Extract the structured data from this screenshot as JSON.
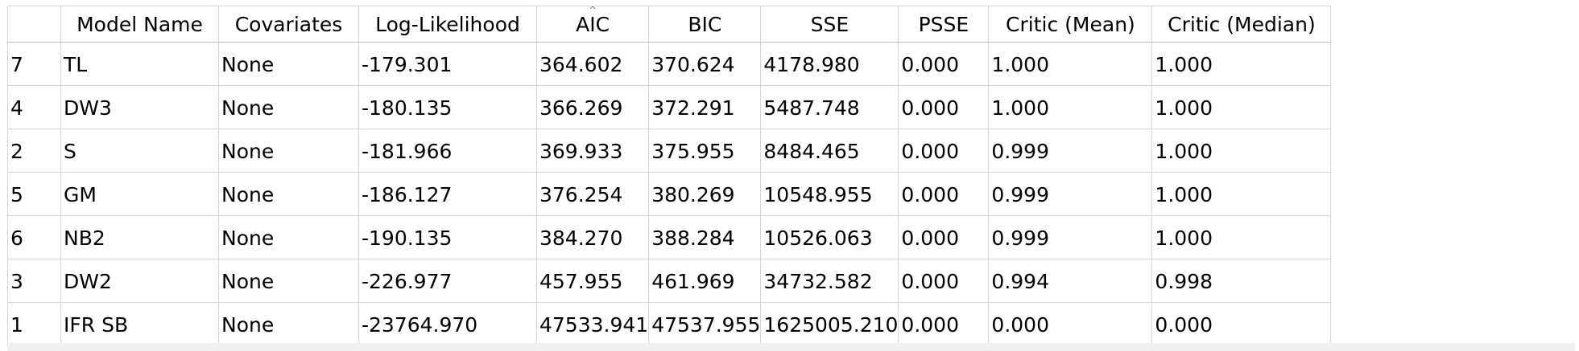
{
  "table": {
    "columns": [
      {
        "key": "row",
        "label": ""
      },
      {
        "key": "model_name",
        "label": "Model Name"
      },
      {
        "key": "covariates",
        "label": "Covariates"
      },
      {
        "key": "log_likelihood",
        "label": "Log-Likelihood"
      },
      {
        "key": "aic",
        "label": "AIC",
        "sorted": true
      },
      {
        "key": "bic",
        "label": "BIC"
      },
      {
        "key": "sse",
        "label": "SSE"
      },
      {
        "key": "psse",
        "label": "PSSE"
      },
      {
        "key": "critic_mean",
        "label": "Critic (Mean)"
      },
      {
        "key": "critic_median",
        "label": "Critic (Median)"
      }
    ],
    "sort_indicator": "^",
    "rows": [
      [
        "7",
        "TL",
        "None",
        "-179.301",
        "364.602",
        "370.624",
        "4178.980",
        "0.000",
        "1.000",
        "1.000"
      ],
      [
        "4",
        "DW3",
        "None",
        "-180.135",
        "366.269",
        "372.291",
        "5487.748",
        "0.000",
        "1.000",
        "1.000"
      ],
      [
        "2",
        "S",
        "None",
        "-181.966",
        "369.933",
        "375.955",
        "8484.465",
        "0.000",
        "0.999",
        "1.000"
      ],
      [
        "5",
        "GM",
        "None",
        "-186.127",
        "376.254",
        "380.269",
        "10548.955",
        "0.000",
        "0.999",
        "1.000"
      ],
      [
        "6",
        "NB2",
        "None",
        "-190.135",
        "384.270",
        "388.284",
        "10526.063",
        "0.000",
        "0.999",
        "1.000"
      ],
      [
        "3",
        "DW2",
        "None",
        "-226.977",
        "457.955",
        "461.969",
        "34732.582",
        "0.000",
        "0.994",
        "0.998"
      ],
      [
        "1",
        "IFR SB",
        "None",
        "-23764.970",
        "47533.941",
        "47537.955",
        "1625005.210",
        "0.000",
        "0.000",
        "0.000"
      ]
    ]
  }
}
